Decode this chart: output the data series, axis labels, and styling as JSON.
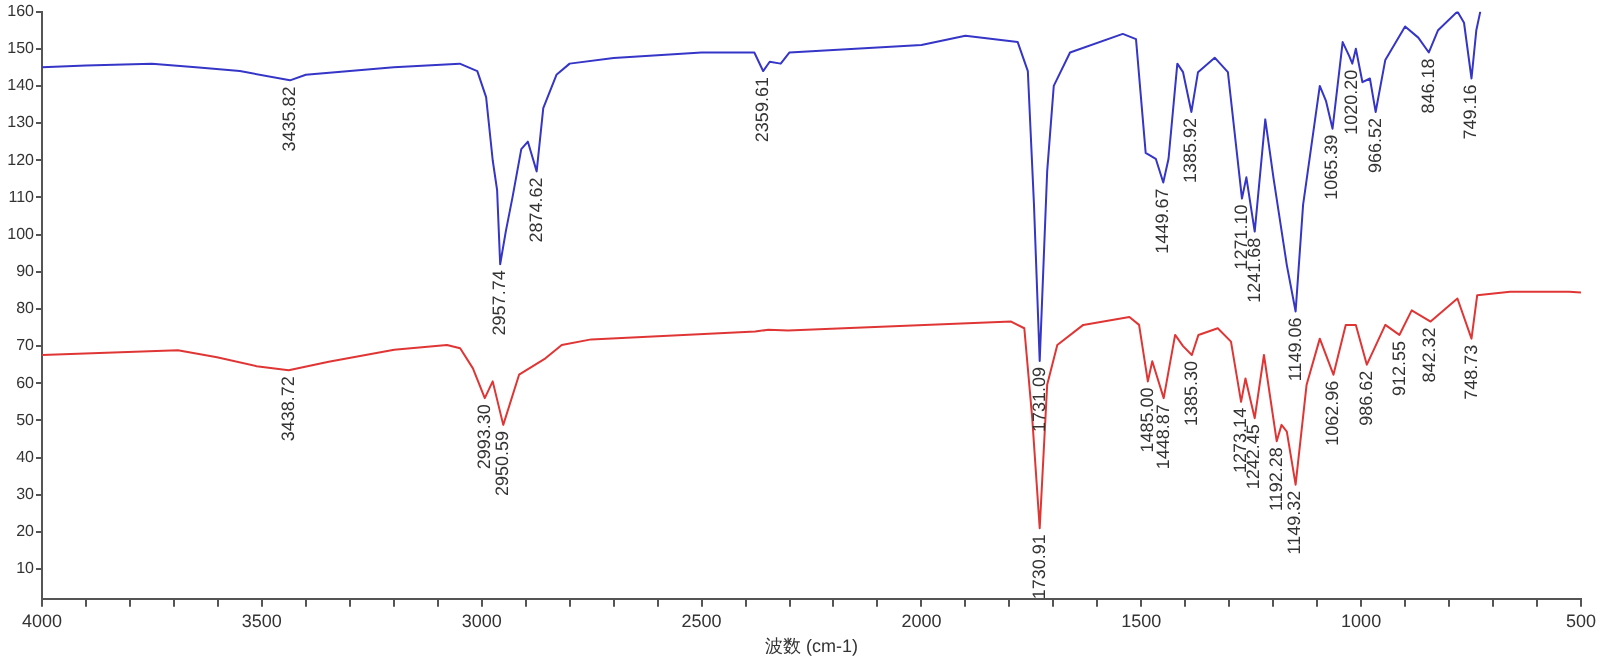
{
  "chart_data": {
    "type": "line",
    "xlabel": "波数 (cm-1)",
    "xlim": [
      4000,
      500
    ],
    "ylim": [
      2,
      160
    ],
    "grid": false,
    "legend": false,
    "marker": "none",
    "line_style": "solid",
    "xticks": [
      4000,
      {
        "value": 3900,
        "label": null
      },
      {
        "value": 3800,
        "label": null
      },
      {
        "value": 3700,
        "label": null
      },
      {
        "value": 3600,
        "label": null
      },
      3500,
      {
        "value": 3400,
        "label": null
      },
      {
        "value": 3300,
        "label": null
      },
      {
        "value": 3200,
        "label": null
      },
      {
        "value": 3100,
        "label": null
      },
      3000,
      {
        "value": 2900,
        "label": null
      },
      {
        "value": 2800,
        "label": null
      },
      {
        "value": 2700,
        "label": null
      },
      {
        "value": 2600,
        "label": null
      },
      2500,
      {
        "value": 2400,
        "label": null
      },
      {
        "value": 2300,
        "label": null
      },
      {
        "value": 2200,
        "label": null
      },
      {
        "value": 2100,
        "label": null
      },
      2000,
      {
        "value": 1900,
        "label": null
      },
      {
        "value": 1800,
        "label": null
      },
      {
        "value": 1700,
        "label": null
      },
      {
        "value": 1600,
        "label": null
      },
      1500,
      {
        "value": 1400,
        "label": null
      },
      {
        "value": 1300,
        "label": null
      },
      {
        "value": 1200,
        "label": null
      },
      {
        "value": 1100,
        "label": null
      },
      1000,
      {
        "value": 900,
        "label": null
      },
      {
        "value": 800,
        "label": null
      },
      {
        "value": 700,
        "label": null
      },
      {
        "value": 600,
        "label": null
      },
      500
    ],
    "yticks": [
      10,
      20,
      30,
      40,
      50,
      60,
      70,
      80,
      90,
      100,
      110,
      120,
      130,
      140,
      150,
      160
    ],
    "series": [
      {
        "color": "#3535c8",
        "x": [
          4000,
          3900,
          3750,
          3650,
          3550,
          3436,
          3400,
          3200,
          3050,
          3010,
          2990,
          2975,
          2965,
          2958,
          2945,
          2930,
          2910,
          2895,
          2875,
          2860,
          2830,
          2800,
          2700,
          2500,
          2380,
          2360,
          2345,
          2320,
          2300,
          2000,
          1900,
          1781,
          1758,
          1744,
          1731,
          1714,
          1699,
          1662,
          1542,
          1512,
          1490,
          1467,
          1450,
          1438,
          1418,
          1405,
          1386,
          1371,
          1333,
          1303,
          1271,
          1261,
          1242,
          1218,
          1199,
          1169,
          1149,
          1132,
          1094,
          1080,
          1065,
          1042,
          1027,
          1020,
          1012,
          997,
          980,
          967,
          945,
          900,
          870,
          846,
          825,
          781,
          766,
          749,
          738,
          729
        ],
        "values": [
          145,
          145.5,
          146,
          145,
          144,
          141.5,
          143,
          145,
          146,
          144,
          137,
          120,
          112,
          92,
          101,
          110,
          123,
          125,
          117,
          134,
          143,
          146,
          147.5,
          149,
          149,
          144,
          146.5,
          146,
          149,
          151,
          153.5,
          151.8,
          144,
          108,
          66,
          117,
          140,
          149,
          154,
          152.6,
          122,
          120.4,
          114,
          120.4,
          146,
          143.7,
          133,
          143.7,
          147.6,
          143.7,
          109.7,
          115.4,
          100.8,
          131,
          115,
          91.8,
          79.3,
          108,
          140,
          136,
          128.5,
          151.8,
          148,
          146,
          150,
          141,
          142,
          133,
          147,
          156,
          153,
          149,
          155,
          160,
          157,
          142,
          155,
          160
        ]
      },
      {
        "color": "#e03535",
        "x": [
          4000,
          3691,
          3602,
          3512,
          3439,
          3348,
          3199,
          3079,
          3049,
          3020,
          2993,
          2975,
          2951,
          2915,
          2855,
          2818,
          2751,
          2378,
          2348,
          2303,
          1796,
          1766,
          1748,
          1731,
          1714,
          1691,
          1632,
          1527,
          1505,
          1485,
          1475,
          1449,
          1423,
          1405,
          1385,
          1370,
          1326,
          1296,
          1273,
          1263,
          1242,
          1221,
          1192,
          1181,
          1169,
          1149,
          1124,
          1094,
          1063,
          1035,
          1012,
          987,
          945,
          913,
          885,
          842,
          781,
          749,
          736,
          661,
          527,
          500
        ],
        "values": [
          67.6,
          68.9,
          67,
          64.6,
          63.5,
          65.8,
          69,
          70.3,
          69.4,
          64,
          56,
          60.5,
          48.8,
          62.3,
          66.7,
          70.3,
          71.8,
          73.9,
          74.4,
          74.2,
          76.6,
          74.8,
          50.6,
          21,
          59.6,
          70.3,
          75.7,
          77.8,
          75.7,
          60.5,
          65.9,
          56,
          73,
          70,
          67.6,
          73,
          74.8,
          71.2,
          55,
          61.3,
          50.6,
          67.6,
          44.4,
          48.8,
          47,
          32.7,
          59.6,
          72,
          62.3,
          75.7,
          75.7,
          65,
          75.7,
          73,
          79.6,
          76.6,
          82.8,
          72,
          83.7,
          84.6,
          84.6,
          84.4
        ]
      }
    ],
    "annotations": [
      {
        "text": "3435.82",
        "x": 3435.82,
        "y": 141.5
      },
      {
        "text": "2957.74",
        "x": 2957.74,
        "y": 92
      },
      {
        "text": "2874.62",
        "x": 2874.62,
        "y": 117
      },
      {
        "text": "2359.61",
        "x": 2359.61,
        "y": 144
      },
      {
        "text": "1449.67",
        "x": 1449.67,
        "y": 114
      },
      {
        "text": "1385.92",
        "x": 1385.92,
        "y": 133
      },
      {
        "text": "1271.10",
        "x": 1271.1,
        "y": 109.7
      },
      {
        "text": "1241.68",
        "x": 1241.68,
        "y": 100.8
      },
      {
        "text": "1149.06",
        "x": 1149.06,
        "y": 79.3
      },
      {
        "text": "1065.39",
        "x": 1065.39,
        "y": 128.5
      },
      {
        "text": "1020.20",
        "x": 1020.2,
        "y": 146
      },
      {
        "text": "966.52",
        "x": 966.52,
        "y": 133
      },
      {
        "text": "846.18",
        "x": 846.18,
        "y": 149
      },
      {
        "text": "749.16",
        "x": 749.16,
        "y": 142
      },
      {
        "text": "3438.72",
        "x": 3438.72,
        "y": 63.5
      },
      {
        "text": "2993.30",
        "x": 2993.3,
        "y": 56
      },
      {
        "text": "2950.59",
        "x": 2950.59,
        "y": 48.8
      },
      {
        "text": "1731.09",
        "x": 1731.09,
        "y": 66
      },
      {
        "text": "1730.91",
        "x": 1730.91,
        "y": 21
      },
      {
        "text": "1485.00",
        "x": 1485,
        "y": 60.5
      },
      {
        "text": "1448.87",
        "x": 1448.87,
        "y": 56
      },
      {
        "text": "1385.30",
        "x": 1385.3,
        "y": 67.6
      },
      {
        "text": "1273.14",
        "x": 1273.14,
        "y": 55
      },
      {
        "text": "1242.45",
        "x": 1242.45,
        "y": 50.6
      },
      {
        "text": "1192.28",
        "x": 1192.28,
        "y": 44.4
      },
      {
        "text": "1149.32",
        "x": 1149.32,
        "y": 32.7
      },
      {
        "text": "1062.96",
        "x": 1062.96,
        "y": 62.3
      },
      {
        "text": "986.62",
        "x": 986.62,
        "y": 65
      },
      {
        "text": "912.55",
        "x": 912.55,
        "y": 73
      },
      {
        "text": "842.32",
        "x": 842.32,
        "y": 76.6
      },
      {
        "text": "748.73",
        "x": 748.73,
        "y": 72
      }
    ]
  }
}
